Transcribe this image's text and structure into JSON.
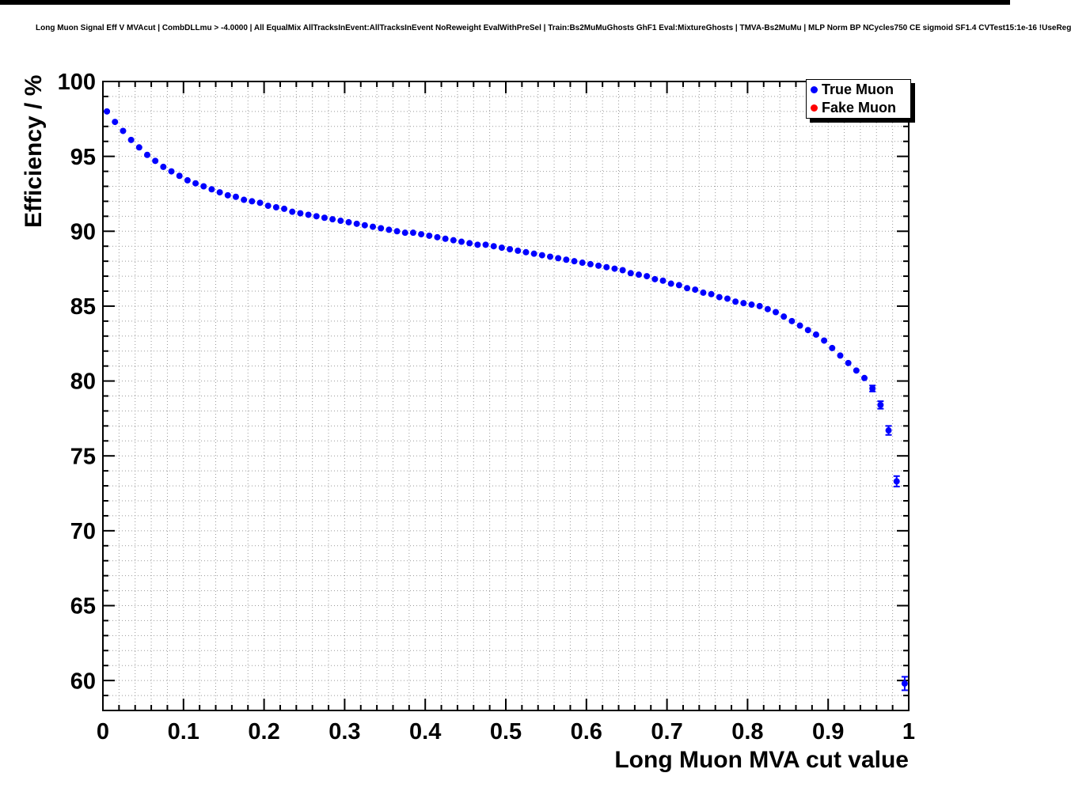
{
  "header": {
    "title": "Long Muon Signal Eff V MVAcut | CombDLLmu > -4.0000 | All EqualMix AllTracksInEvent:AllTracksInEvent NoReweight EvalWithPreSel | Train:Bs2MuMuGhosts GhF1 Eval:MixtureGhosts | TMVA-Bs2MuMu | MLP Norm BP NCycles750 CE sigmoid SF1.4 CVTest15:1e-16 !UseReg"
  },
  "chart_data": {
    "type": "scatter",
    "title": "Long Muon Signal Eff V MVAcut | CombDLLmu > -4.0000 | All EqualMix AllTracksInEvent:AllTracksInEvent NoReweight EvalWithPreSel | Train:Bs2MuMuGhosts GhF1 Eval:MixtureGhosts | TMVA-Bs2MuMu | MLP Norm BP NCycles750 CE sigmoid SF1.4 CVTest15:1e-16 !UseReg",
    "xlabel": "Long Muon MVA cut value",
    "ylabel": "Efficiency / %",
    "xlim": [
      0,
      1
    ],
    "ylim": [
      58,
      100
    ],
    "grid": true,
    "grid_color": "#999999",
    "x_minor_step": 0.02,
    "y_minor_step": 1,
    "x_major_ticks": [
      {
        "v": 0,
        "label": "0"
      },
      {
        "v": 0.1,
        "label": "0.1"
      },
      {
        "v": 0.2,
        "label": "0.2"
      },
      {
        "v": 0.3,
        "label": "0.3"
      },
      {
        "v": 0.4,
        "label": "0.4"
      },
      {
        "v": 0.5,
        "label": "0.5"
      },
      {
        "v": 0.6,
        "label": "0.6"
      },
      {
        "v": 0.7,
        "label": "0.7"
      },
      {
        "v": 0.8,
        "label": "0.8"
      },
      {
        "v": 0.9,
        "label": "0.9"
      },
      {
        "v": 1,
        "label": "1"
      }
    ],
    "y_major_ticks": [
      {
        "v": 60,
        "label": "60"
      },
      {
        "v": 65,
        "label": "65"
      },
      {
        "v": 70,
        "label": "70"
      },
      {
        "v": 75,
        "label": "75"
      },
      {
        "v": 80,
        "label": "80"
      },
      {
        "v": 85,
        "label": "85"
      },
      {
        "v": 90,
        "label": "90"
      },
      {
        "v": 95,
        "label": "95"
      },
      {
        "v": 100,
        "label": "100"
      }
    ],
    "legend": {
      "position": "top-right",
      "entries": [
        {
          "label": "True Muon",
          "color": "#0000ff",
          "marker": "circle"
        },
        {
          "label": "Fake Muon",
          "color": "#ff0000",
          "marker": "circle"
        }
      ]
    },
    "default_yerr": 0.12,
    "series": [
      {
        "name": "True Muon",
        "color": "#0000ff",
        "marker": "circle",
        "points": [
          [
            0.005,
            98.0
          ],
          [
            0.015,
            97.3
          ],
          [
            0.025,
            96.7
          ],
          [
            0.035,
            96.1
          ],
          [
            0.045,
            95.6
          ],
          [
            0.055,
            95.1
          ],
          [
            0.065,
            94.7
          ],
          [
            0.075,
            94.3
          ],
          [
            0.085,
            94.0
          ],
          [
            0.095,
            93.7
          ],
          [
            0.105,
            93.4
          ],
          [
            0.115,
            93.2
          ],
          [
            0.125,
            93.0
          ],
          [
            0.135,
            92.8
          ],
          [
            0.145,
            92.6
          ],
          [
            0.155,
            92.4
          ],
          [
            0.165,
            92.3
          ],
          [
            0.175,
            92.1
          ],
          [
            0.185,
            92.0
          ],
          [
            0.195,
            91.9
          ],
          [
            0.205,
            91.7
          ],
          [
            0.215,
            91.6
          ],
          [
            0.225,
            91.5
          ],
          [
            0.235,
            91.3
          ],
          [
            0.245,
            91.2
          ],
          [
            0.255,
            91.1
          ],
          [
            0.265,
            91.0
          ],
          [
            0.275,
            90.9
          ],
          [
            0.285,
            90.8
          ],
          [
            0.295,
            90.7
          ],
          [
            0.305,
            90.6
          ],
          [
            0.315,
            90.5
          ],
          [
            0.325,
            90.4
          ],
          [
            0.335,
            90.3
          ],
          [
            0.345,
            90.2
          ],
          [
            0.355,
            90.1
          ],
          [
            0.365,
            90.0
          ],
          [
            0.375,
            89.9
          ],
          [
            0.385,
            89.9
          ],
          [
            0.395,
            89.8
          ],
          [
            0.405,
            89.7
          ],
          [
            0.415,
            89.6
          ],
          [
            0.425,
            89.5
          ],
          [
            0.435,
            89.4
          ],
          [
            0.445,
            89.3
          ],
          [
            0.455,
            89.2
          ],
          [
            0.465,
            89.1
          ],
          [
            0.475,
            89.1
          ],
          [
            0.485,
            89.0
          ],
          [
            0.495,
            88.9
          ],
          [
            0.505,
            88.8
          ],
          [
            0.515,
            88.7
          ],
          [
            0.525,
            88.6
          ],
          [
            0.535,
            88.5
          ],
          [
            0.545,
            88.4
          ],
          [
            0.555,
            88.3
          ],
          [
            0.565,
            88.2
          ],
          [
            0.575,
            88.1
          ],
          [
            0.585,
            88.0
          ],
          [
            0.595,
            87.9
          ],
          [
            0.605,
            87.8
          ],
          [
            0.615,
            87.7
          ],
          [
            0.625,
            87.6
          ],
          [
            0.635,
            87.5
          ],
          [
            0.645,
            87.4
          ],
          [
            0.655,
            87.2
          ],
          [
            0.665,
            87.1
          ],
          [
            0.675,
            87.0
          ],
          [
            0.685,
            86.8
          ],
          [
            0.695,
            86.7
          ],
          [
            0.705,
            86.5
          ],
          [
            0.715,
            86.4
          ],
          [
            0.725,
            86.2
          ],
          [
            0.735,
            86.1
          ],
          [
            0.745,
            85.9
          ],
          [
            0.755,
            85.8
          ],
          [
            0.765,
            85.6
          ],
          [
            0.775,
            85.5
          ],
          [
            0.785,
            85.3
          ],
          [
            0.795,
            85.2
          ],
          [
            0.805,
            85.1
          ],
          [
            0.815,
            85.0
          ],
          [
            0.825,
            84.8
          ],
          [
            0.835,
            84.6
          ],
          [
            0.845,
            84.3
          ],
          [
            0.855,
            84.0
          ],
          [
            0.865,
            83.7
          ],
          [
            0.875,
            83.4
          ],
          [
            0.885,
            83.1
          ],
          [
            0.895,
            82.7
          ],
          [
            0.905,
            82.2
          ],
          [
            0.915,
            81.7
          ],
          [
            0.925,
            81.2
          ],
          [
            0.935,
            80.7
          ],
          [
            0.945,
            80.2
          ],
          [
            0.955,
            79.5,
            0.2
          ],
          [
            0.965,
            78.4,
            0.25
          ],
          [
            0.975,
            76.7,
            0.3
          ],
          [
            0.985,
            73.3,
            0.35
          ],
          [
            0.995,
            59.8,
            0.45
          ]
        ]
      },
      {
        "name": "Fake Muon",
        "color": "#ff0000",
        "marker": "circle",
        "points": []
      }
    ]
  }
}
